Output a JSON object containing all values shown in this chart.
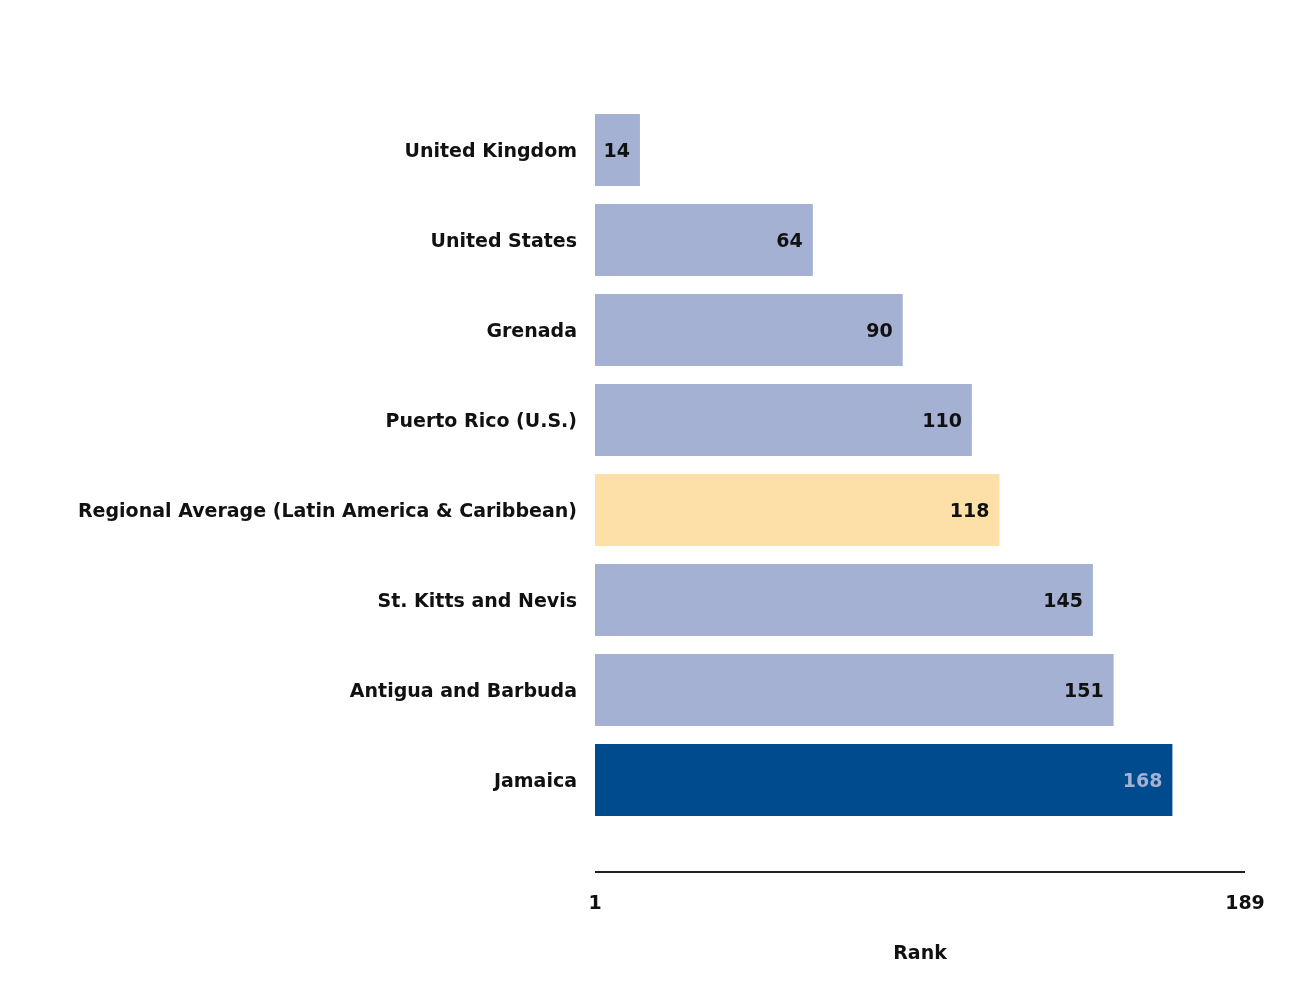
{
  "chart_data": {
    "type": "bar",
    "orientation": "horizontal",
    "categories": [
      "United Kingdom",
      "United States",
      "Grenada",
      "Puerto Rico (U.S.)",
      "Regional Average (Latin America & Caribbean)",
      "St. Kitts and Nevis",
      "Antigua and Barbuda",
      "Jamaica"
    ],
    "values": [
      14,
      64,
      90,
      110,
      118,
      145,
      151,
      168
    ],
    "colors": [
      "#a5b1d3",
      "#a5b1d3",
      "#a5b1d3",
      "#a5b1d3",
      "#fddfa8",
      "#a5b1d3",
      "#a5b1d3",
      "#004b8d"
    ],
    "xlim": [
      1,
      189
    ],
    "xticks": [
      1,
      189
    ],
    "xlabel": "Rank",
    "data_labels": true
  }
}
